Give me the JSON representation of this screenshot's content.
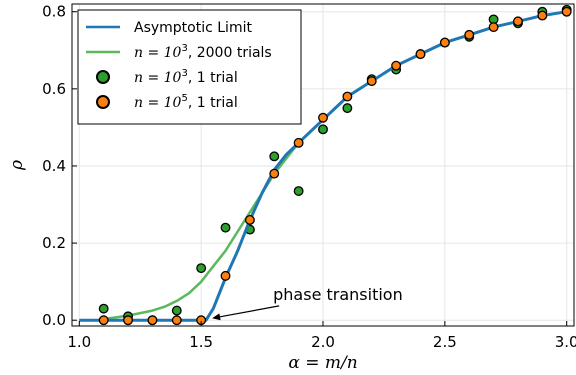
{
  "chart_data": {
    "type": "line",
    "xlabel": "α = m/n",
    "ylabel": "ρ",
    "xlim": [
      0.97,
      3.03
    ],
    "ylim": [
      -0.015,
      0.82
    ],
    "grid": true,
    "legend_position": "top-left",
    "xticks": [
      1.0,
      1.5,
      2.0,
      2.5,
      3.0
    ],
    "xtick_labels": [
      "1.0",
      "1.5",
      "2.0",
      "2.5",
      "3.0"
    ],
    "yticks": [
      0.0,
      0.2,
      0.4,
      0.6,
      0.8
    ],
    "ytick_labels": [
      "0.0",
      "0.2",
      "0.4",
      "0.6",
      "0.8"
    ],
    "colors": {
      "asymptotic": "#1f77b4",
      "trials2000": "#5cb85c",
      "trial1_1e3": "#2ca02c",
      "trial1_1e5": "#ff7f0e"
    },
    "legend": [
      {
        "key": "asymptotic",
        "label": "Asymptotic Limit",
        "marker": "line"
      },
      {
        "key": "trials2000",
        "label_math": "n = 10",
        "label_sup": "3",
        "label_rest": ", 2000 trials",
        "marker": "line"
      },
      {
        "key": "trial1_1e3",
        "label_math": "n = 10",
        "label_sup": "3",
        "label_rest": ", 1 trial",
        "marker": "circle"
      },
      {
        "key": "trial1_1e5",
        "label_math": "n = 10",
        "label_sup": "5",
        "label_rest": ", 1 trial",
        "marker": "circle"
      }
    ],
    "series": [
      {
        "name": "Asymptotic Limit",
        "key": "asymptotic",
        "x": [
          1.0,
          1.5,
          1.52,
          1.55,
          1.6,
          1.65,
          1.7,
          1.75,
          1.8,
          1.85,
          1.9,
          2.0,
          2.1,
          2.2,
          2.3,
          2.4,
          2.5,
          2.6,
          2.7,
          2.8,
          2.9,
          3.0
        ],
        "y": [
          0.0,
          0.0,
          0.0,
          0.03,
          0.11,
          0.18,
          0.26,
          0.33,
          0.39,
          0.43,
          0.46,
          0.52,
          0.58,
          0.62,
          0.66,
          0.69,
          0.72,
          0.74,
          0.76,
          0.775,
          0.79,
          0.8
        ]
      },
      {
        "name": "n = 10^3, 2000 trials",
        "key": "trials2000",
        "x": [
          1.1,
          1.2,
          1.3,
          1.35,
          1.4,
          1.45,
          1.5,
          1.55,
          1.6,
          1.65,
          1.7,
          1.75,
          1.8,
          1.85,
          1.9
        ],
        "y": [
          0.003,
          0.012,
          0.025,
          0.035,
          0.05,
          0.07,
          0.1,
          0.14,
          0.18,
          0.23,
          0.28,
          0.33,
          0.38,
          0.42,
          0.46
        ]
      },
      {
        "name": "n = 10^3, 1 trial",
        "key": "trial1_1e3",
        "x": [
          1.1,
          1.2,
          1.3,
          1.4,
          1.5,
          1.6,
          1.7,
          1.8,
          1.9,
          2.0,
          2.1,
          2.2,
          2.3,
          2.4,
          2.5,
          2.6,
          2.7,
          2.8,
          2.9,
          3.0
        ],
        "y": [
          0.03,
          0.01,
          0.0,
          0.025,
          0.135,
          0.24,
          0.235,
          0.425,
          0.335,
          0.495,
          0.55,
          0.625,
          0.65,
          0.69,
          0.72,
          0.735,
          0.78,
          0.77,
          0.8,
          0.805
        ]
      },
      {
        "name": "n = 10^5, 1 trial",
        "key": "trial1_1e5",
        "x": [
          1.1,
          1.2,
          1.3,
          1.4,
          1.5,
          1.6,
          1.7,
          1.8,
          1.9,
          2.0,
          2.1,
          2.2,
          2.3,
          2.4,
          2.5,
          2.6,
          2.7,
          2.8,
          2.9,
          3.0
        ],
        "y": [
          0.0,
          0.0,
          0.0,
          0.0,
          0.0,
          0.115,
          0.26,
          0.38,
          0.46,
          0.525,
          0.58,
          0.62,
          0.66,
          0.69,
          0.72,
          0.74,
          0.76,
          0.775,
          0.79,
          0.8
        ]
      }
    ],
    "annotations": [
      {
        "text": "phase transition",
        "text_at": [
          1.82,
          0.115
        ],
        "arrow_to": [
          1.545,
          0.005
        ]
      }
    ]
  }
}
